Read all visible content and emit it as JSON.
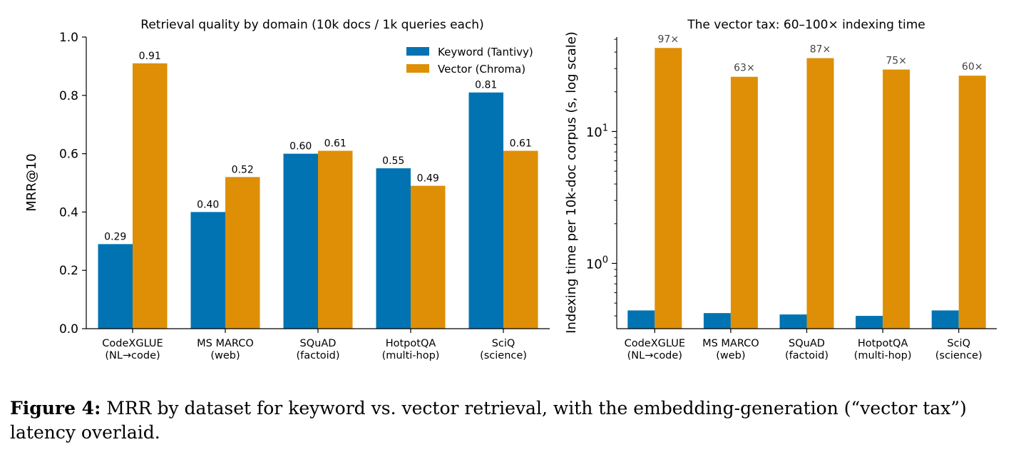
{
  "caption": {
    "label": "Figure 4:",
    "text": "MRR by dataset for keyword vs. vector retrieval, with the embedding-generation (“vector tax”) latency overlaid."
  },
  "chart_data": [
    {
      "type": "bar",
      "title": "Retrieval quality by domain (10k docs / 1k queries each)",
      "xlabel": "",
      "ylabel": "MRR@10",
      "ylim": [
        0,
        1.0
      ],
      "yticks": [
        "0.0",
        "0.2",
        "0.4",
        "0.6",
        "0.8",
        "1.0"
      ],
      "categories": [
        [
          "CodeXGLUE",
          "(NL→code)"
        ],
        [
          "MS MARCO",
          "(web)"
        ],
        [
          "SQuAD",
          "(factoid)"
        ],
        [
          "HotpotQA",
          "(multi-hop)"
        ],
        [
          "SciQ",
          "(science)"
        ]
      ],
      "series": [
        {
          "name": "Keyword (Tantivy)",
          "color": "#0173b2",
          "values": [
            0.29,
            0.4,
            0.6,
            0.55,
            0.81
          ],
          "labels": [
            "0.29",
            "0.40",
            "0.60",
            "0.55",
            "0.81"
          ]
        },
        {
          "name": "Vector (Chroma)",
          "color": "#de8f05",
          "values": [
            0.91,
            0.52,
            0.61,
            0.49,
            0.61
          ],
          "labels": [
            "0.91",
            "0.52",
            "0.61",
            "0.49",
            "0.61"
          ]
        }
      ],
      "legend": "top-right",
      "grid": false
    },
    {
      "type": "bar",
      "title": "The vector tax: 60–100× indexing time",
      "xlabel": "",
      "ylabel": "Indexing time per 10k-doc corpus (s, log scale)",
      "yscale": "log",
      "ylim": [
        0.32,
        52
      ],
      "yticks": [
        {
          "base": "10",
          "exp": "0",
          "value": 1
        },
        {
          "base": "10",
          "exp": "1",
          "value": 10
        }
      ],
      "categories": [
        [
          "CodeXGLUE",
          "(NL→code)"
        ],
        [
          "MS MARCO",
          "(web)"
        ],
        [
          "SQuAD",
          "(factoid)"
        ],
        [
          "HotpotQA",
          "(multi-hop)"
        ],
        [
          "SciQ",
          "(science)"
        ]
      ],
      "series": [
        {
          "color": "#0173b2",
          "values": [
            0.44,
            0.42,
            0.41,
            0.4,
            0.44
          ]
        },
        {
          "color": "#de8f05",
          "values": [
            43,
            26,
            36,
            29.5,
            26.5
          ]
        }
      ],
      "annotations": [
        "97×",
        "63×",
        "87×",
        "75×",
        "60×"
      ],
      "legend": "none",
      "grid": false
    }
  ]
}
